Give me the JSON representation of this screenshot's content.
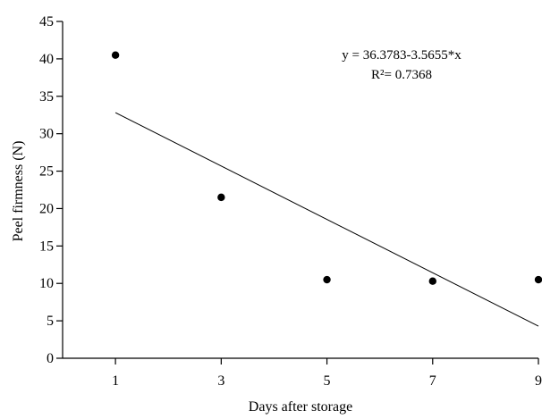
{
  "chart_data": {
    "type": "scatter",
    "x": [
      1,
      3,
      5,
      7,
      9
    ],
    "y": [
      40.5,
      21.5,
      10.5,
      10.3,
      10.5
    ],
    "xlabel": "Days after storage",
    "ylabel": "Peel firmness (N)",
    "xticks": [
      1,
      3,
      5,
      7,
      9
    ],
    "yticks": [
      0,
      5,
      10,
      15,
      20,
      25,
      30,
      35,
      40,
      45
    ],
    "xlim": [
      0,
      9
    ],
    "ylim": [
      0,
      45
    ],
    "grid": false,
    "trendline": {
      "intercept": 36.3783,
      "slope": -3.5655,
      "x_range": [
        1,
        9
      ],
      "equation": "y = 36.3783-3.5655*x",
      "r_squared": "R²= 0.7368"
    }
  }
}
